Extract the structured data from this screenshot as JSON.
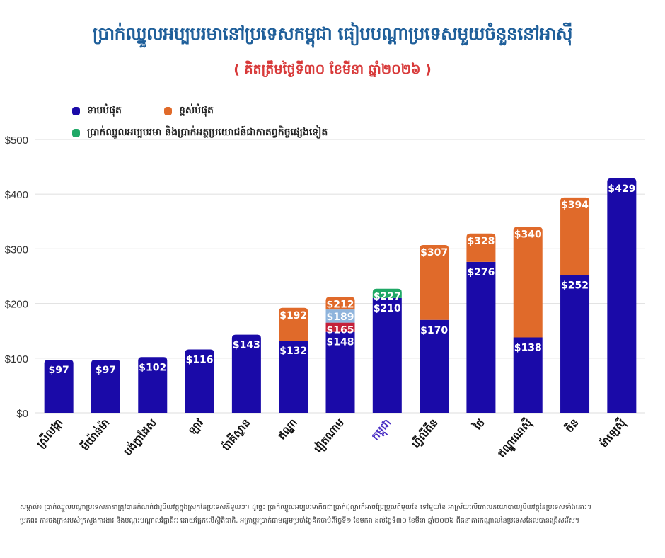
{
  "header": {
    "title": "ប្រាក់ឈ្នួលអប្បបរមានៅប្រទេសកម្ពុជា ធៀបបណ្ដាប្រទេសមួយចំនួននៅអាស៊ី",
    "subtitle": "( គិតត្រឹមថ្ងៃទី៣០ ខែមីនា ឆ្នាំ២០២៦ )"
  },
  "legend": [
    {
      "label": "ទាបបំផុត",
      "color": "#1a0aa8"
    },
    {
      "label": "ខ្ពស់បំផុត",
      "color": "#e06a2a"
    },
    {
      "label": "ប្រាក់ឈ្នួលអប្បបរមា និងប្រាក់អត្ថប្រយោជន៍ជាកាតព្វកិច្ចផ្សេងទៀត",
      "color": "#1fa866"
    }
  ],
  "colors": {
    "lowest": "#1a0aa8",
    "highest": "#e06a2a",
    "benefits": "#1fa866",
    "tier_red": "#c4203a",
    "tier_lightblue": "#8fb4dc",
    "grid": "#e3e3e3",
    "highlight_label": "#4a2fc4"
  },
  "chart_data": {
    "type": "bar",
    "stacked": true,
    "title": "ប្រាក់ឈ្នួលអប្បបរមានៅប្រទេសកម្ពុជា ធៀបបណ្ដាប្រទេសមួយចំនួននៅអាស៊ី",
    "subtitle": "( គិតត្រឹមថ្ងៃទី៣០ ខែមីនា ឆ្នាំ២០២៦ )",
    "xlabel": "",
    "ylabel": "",
    "ylim": [
      0,
      500
    ],
    "yticks": [
      0,
      100,
      200,
      300,
      400,
      500
    ],
    "ytick_labels": [
      "$0",
      "$100",
      "$200",
      "$300",
      "$400",
      "$500"
    ],
    "grid": true,
    "legend_position": "top-left",
    "highlight_category": "កម្ពុជា",
    "categories": [
      "ស្រីលង្កា",
      "មីយ៉ាន់ម៉ា",
      "បង់ក្លាដែស",
      "ឡាវ",
      "ប៉ាគីស្ថាន",
      "ឥណ្ឌា",
      "វៀតណាម",
      "កម្ពុជា",
      "ហ្វីលីពីន",
      "ថៃ",
      "ឥណ្ឌូណេស៊ី",
      "ចិន",
      "ម៉ាឡេស៊ី"
    ],
    "bars": [
      {
        "category": "ស្រីលង្កា",
        "segments": [
          {
            "series": "lowest",
            "top": 97,
            "label": "$97"
          }
        ]
      },
      {
        "category": "មីយ៉ាន់ម៉ា",
        "segments": [
          {
            "series": "lowest",
            "top": 97,
            "label": "$97"
          }
        ]
      },
      {
        "category": "បង់ក្លាដែស",
        "segments": [
          {
            "series": "lowest",
            "top": 102,
            "label": "$102"
          }
        ]
      },
      {
        "category": "ឡាវ",
        "segments": [
          {
            "series": "lowest",
            "top": 116,
            "label": "$116"
          }
        ]
      },
      {
        "category": "ប៉ាគីស្ថាន",
        "segments": [
          {
            "series": "lowest",
            "top": 143,
            "label": "$143"
          }
        ]
      },
      {
        "category": "ឥណ្ឌា",
        "segments": [
          {
            "series": "lowest",
            "top": 132,
            "label": "$132"
          },
          {
            "series": "highest",
            "top": 192,
            "label": "$192"
          }
        ]
      },
      {
        "category": "វៀតណាម",
        "segments": [
          {
            "series": "lowest",
            "top": 148,
            "label": "$148"
          },
          {
            "series": "tier_red",
            "top": 165,
            "label": "$165"
          },
          {
            "series": "tier_lightblue",
            "top": 189,
            "label": "$189"
          },
          {
            "series": "highest",
            "top": 212,
            "label": "$212"
          }
        ]
      },
      {
        "category": "កម្ពុជា",
        "segments": [
          {
            "series": "lowest",
            "top": 210,
            "label": "$210"
          },
          {
            "series": "benefits",
            "top": 227,
            "label": "$227"
          }
        ]
      },
      {
        "category": "ហ្វីលីពីន",
        "segments": [
          {
            "series": "lowest",
            "top": 170,
            "label": "$170"
          },
          {
            "series": "highest",
            "top": 307,
            "label": "$307"
          }
        ]
      },
      {
        "category": "ថៃ",
        "segments": [
          {
            "series": "lowest",
            "top": 276,
            "label": "$276"
          },
          {
            "series": "highest",
            "top": 328,
            "label": "$328"
          }
        ]
      },
      {
        "category": "ឥណ្ឌូណេស៊ី",
        "segments": [
          {
            "series": "lowest",
            "top": 138,
            "label": "$138"
          },
          {
            "series": "highest",
            "top": 340,
            "label": "$340"
          }
        ]
      },
      {
        "category": "ចិន",
        "segments": [
          {
            "series": "lowest",
            "top": 252,
            "label": "$252"
          },
          {
            "series": "highest",
            "top": 394,
            "label": "$394"
          }
        ]
      },
      {
        "category": "ម៉ាឡេស៊ី",
        "segments": [
          {
            "series": "lowest",
            "top": 429,
            "label": "$429"
          }
        ]
      }
    ],
    "series": [
      {
        "name": "ទាបបំផុត",
        "key": "lowest",
        "values": [
          97,
          97,
          102,
          116,
          143,
          132,
          148,
          210,
          170,
          276,
          138,
          252,
          429
        ]
      },
      {
        "name": "ខ្ពស់បំផុត",
        "key": "highest",
        "values": [
          null,
          null,
          null,
          null,
          null,
          192,
          212,
          null,
          307,
          328,
          340,
          394,
          null
        ]
      },
      {
        "name": "ប្រាក់ឈ្នួលអប្បបរមា និងប្រាក់អត្ថប្រយោជន៍ជាកាតព្វកិច្ចផ្សេងទៀត",
        "key": "benefits",
        "values": [
          null,
          null,
          null,
          null,
          null,
          null,
          null,
          227,
          null,
          null,
          null,
          null,
          null
        ]
      }
    ]
  },
  "footnote": {
    "line1": "សម្គាល់៖ ប្រាក់ឈ្នួលបណ្ដាប្រទេសនានាត្រូវបានកំណត់ជារូបិយវត្ថុក្នុងស្រុកនៃប្រទេសនីមួយៗ។ ដូច្នេះ ប្រាក់ឈ្នួលអប្បបរមាគិតជាប្រាក់ដុល្លារគឺអាចប្រែប្រួលពីមួយខែ ទៅមួយខែ អាស្រ័យលើគោលនយោបាយរូបិយវត្ថុនៃប្រទេសទាំងនោះ។",
    "line2": "ប្រភព៖ ការចងក្រងរបស់ក្រសួងការងារ និងបណ្ដុះបណ្ដាលវិជ្ជាជីវៈ ដោយផ្អែកលើស្ថិតិជាតិ, អត្រាប្ដូរប្រាក់ជាមធ្យមប្រចាំថ្ងៃគិតចាប់ពីថ្ងៃទី១ ខែមករា ដល់ថ្ងៃទី៣០ ខែមីនា ឆ្នាំ២០២៦ ពីធនាគារកណ្ដាលនៃប្រទេសដែលបានជ្រើសរើស។"
  }
}
